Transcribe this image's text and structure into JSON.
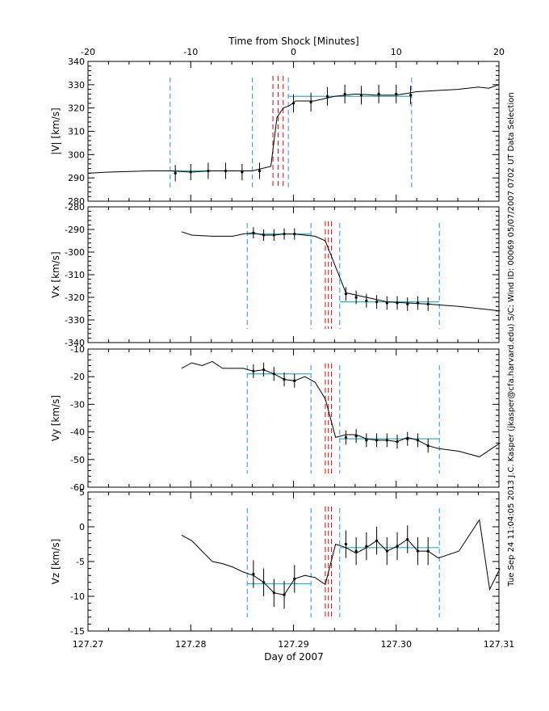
{
  "chart_data": {
    "type": "line",
    "top_axis": {
      "label": "Time from Shock [Minutes]",
      "range": [
        -20,
        20
      ],
      "ticks": [
        -20,
        -10,
        0,
        10,
        20
      ]
    },
    "x_axis": {
      "label": "Day of 2007",
      "range": [
        127.27,
        127.31
      ],
      "ticks": [
        "127.27",
        "127.28",
        "127.29",
        "127.30",
        "127.31"
      ]
    },
    "side_text": "Tue Sep 24 11:04:05 2013    J.C. Kasper (jkasper@cfa.harvard.edu)    S/C: Wind ID: 00069 05/07/2007    0702 UT Data Selection",
    "colors": {
      "data_line": "#000000",
      "window_line": "#1e90ff",
      "shock_line": "#e00000",
      "fit_line": "#22b8c8"
    },
    "panels": [
      {
        "ylabel": "|V| [km/s]",
        "ylim": [
          280,
          340
        ],
        "yticks": [
          280,
          290,
          300,
          310,
          320,
          330,
          340
        ],
        "series": [
          {
            "x": [
              -20,
              -18,
              -14,
              -12,
              -10,
              -8,
              -6,
              -4,
              -2.2,
              -1.6,
              -1.0,
              -0.4,
              0.2,
              2,
              4,
              6,
              8,
              10,
              12,
              14,
              16,
              18,
              19,
              20
            ],
            "y": [
              292,
              292.5,
              293,
              293,
              292.5,
              293,
              293,
              293,
              295,
              316,
              320,
              321,
              323,
              323,
              325,
              326,
              325.5,
              325.5,
              327,
              327.5,
              328,
              329,
              328.5,
              330
            ]
          }
        ],
        "errorbars": [
          {
            "x": [
              -11.5,
              -10.0,
              -8.3,
              -6.6,
              -5.0,
              -3.3
            ],
            "y": [
              292,
              292.5,
              293,
              293,
              292.5,
              293
            ],
            "err": [
              3.5,
              3.5,
              3.5,
              3.5,
              3.5,
              3.5
            ]
          },
          {
            "x": [
              0.0,
              1.7,
              3.3,
              5.0,
              6.6,
              8.3,
              10.0,
              11.4
            ],
            "y": [
              322,
              322.5,
              325,
              326,
              325.5,
              326,
              326,
              325.5
            ],
            "err": [
              4,
              4,
              4,
              4,
              4,
              4,
              4,
              4
            ]
          }
        ],
        "fits": [
          {
            "x": [
              -12,
              -4
            ],
            "y": 293
          },
          {
            "x": [
              -0.5,
              11.5
            ],
            "y": 325
          }
        ],
        "window_lines": [
          -12,
          -4,
          -0.5,
          11.5
        ],
        "shock_lines": [
          -2.0,
          -1.5,
          -1.0
        ]
      },
      {
        "ylabel": "Vx [km/s]",
        "ylim": [
          -340,
          -280
        ],
        "yticks": [
          -340,
          -330,
          -320,
          -310,
          -300,
          -290,
          -280
        ],
        "series": [
          {
            "x": [
              127.2791,
              127.2801,
              127.2821,
              127.2841,
              127.2851,
              127.2861,
              127.2871,
              127.2881,
              127.2891,
              127.2901,
              127.2921,
              127.2931,
              127.2951,
              127.2971,
              127.2991,
              127.3011,
              127.3031,
              127.3061,
              127.3081,
              127.3101
            ],
            "y": [
              -291,
              -292.5,
              -293,
              -293,
              -292,
              -291.5,
              -292.5,
              -292.5,
              -292,
              -292,
              -293,
              -295,
              -318,
              -320,
              -322,
              -322.5,
              -323,
              -324,
              -325,
              -326
            ]
          }
        ],
        "errorbars": [
          {
            "x": [
              127.2861,
              127.2871,
              127.2881,
              127.2891,
              127.2901
            ],
            "y": [
              -291.5,
              -292.5,
              -292.5,
              -292,
              -292
            ],
            "err": [
              2.5,
              2.5,
              2.5,
              2.5,
              2.5
            ]
          },
          {
            "x": [
              127.2951,
              127.2961,
              127.2971,
              127.2981,
              127.2991,
              127.3001,
              127.3011,
              127.3021,
              127.3031
            ],
            "y": [
              -318.5,
              -320,
              -321.5,
              -322,
              -322.5,
              -322.5,
              -323,
              -322.5,
              -323
            ],
            "err": [
              3,
              3,
              3,
              3,
              3,
              3,
              3,
              3,
              3
            ]
          }
        ],
        "fits": [
          {
            "x": [
              127.2855,
              127.2917
            ],
            "y": -292
          },
          {
            "x": [
              127.2945,
              127.3042
            ],
            "y": -322
          }
        ],
        "window_lines": [
          127.2855,
          127.2917,
          127.2945,
          127.3042
        ],
        "shock_lines": [
          127.2931,
          127.2934,
          127.2937
        ]
      },
      {
        "ylabel": "Vy [km/s]",
        "ylim": [
          -60,
          -10
        ],
        "yticks": [
          -60,
          -50,
          -40,
          -30,
          -20,
          -10
        ],
        "series": [
          {
            "x": [
              127.2791,
              127.2801,
              127.2811,
              127.2821,
              127.2831,
              127.2841,
              127.2851,
              127.2861,
              127.2871,
              127.2881,
              127.2891,
              127.2901,
              127.2911,
              127.2921,
              127.2931,
              127.2941,
              127.2951,
              127.2961,
              127.2971,
              127.2981,
              127.2991,
              127.3001,
              127.3011,
              127.3021,
              127.3031,
              127.3041,
              127.3061,
              127.3081,
              127.3101
            ],
            "y": [
              -17,
              -15,
              -16,
              -14.5,
              -17,
              -17,
              -17,
              -18,
              -17.5,
              -19,
              -21,
              -21.5,
              -20,
              -22,
              -28,
              -42,
              -41,
              -41,
              -42.5,
              -43,
              -43,
              -43.5,
              -42,
              -43,
              -45,
              -46,
              -47,
              -49,
              -44
            ]
          }
        ],
        "errorbars": [
          {
            "x": [
              127.2861,
              127.2871,
              127.2881,
              127.2891,
              127.2901
            ],
            "y": [
              -18,
              -17.5,
              -19,
              -21,
              -21.5
            ],
            "err": [
              2.5,
              2.5,
              2.5,
              2.5,
              2.5
            ]
          },
          {
            "x": [
              127.2951,
              127.2961,
              127.2971,
              127.2981,
              127.2991,
              127.3001,
              127.3011,
              127.3021,
              127.3031
            ],
            "y": [
              -42,
              -41.5,
              -43,
              -43,
              -43,
              -43.5,
              -42.5,
              -43,
              -45
            ],
            "err": [
              2.5,
              2.5,
              2.5,
              2.5,
              2.5,
              2.5,
              2.5,
              2.5,
              2.5
            ]
          }
        ],
        "fits": [
          {
            "x": [
              127.2855,
              127.2917
            ],
            "y": -19
          },
          {
            "x": [
              127.2945,
              127.3042
            ],
            "y": -42.5
          }
        ],
        "window_lines": [
          127.2855,
          127.2917,
          127.2945,
          127.3042
        ],
        "shock_lines": [
          127.2931,
          127.2934,
          127.2937
        ]
      },
      {
        "ylabel": "Vz [km/s]",
        "ylim": [
          -15,
          5
        ],
        "yticks": [
          -15,
          -10,
          -5,
          0,
          5
        ],
        "series": [
          {
            "x": [
              127.2791,
              127.2801,
              127.2811,
              127.2821,
              127.2831,
              127.2841,
              127.2851,
              127.2861,
              127.2871,
              127.2881,
              127.2891,
              127.2901,
              127.2911,
              127.2921,
              127.2931,
              127.2941,
              127.2951,
              127.2961,
              127.2971,
              127.2981,
              127.2991,
              127.3001,
              127.3011,
              127.3021,
              127.3031,
              127.3041,
              127.3061,
              127.3081,
              127.3091,
              127.3101
            ],
            "y": [
              -1.2,
              -2,
              -3.5,
              -5,
              -5.3,
              -5.8,
              -6.5,
              -7,
              -8,
              -9.5,
              -9.8,
              -7.5,
              -7,
              -7.3,
              -8.3,
              -2.5,
              -3,
              -3.8,
              -3,
              -2,
              -3.5,
              -2.8,
              -1.8,
              -3.5,
              -3.5,
              -4.5,
              -3.5,
              1,
              -9,
              -6
            ]
          }
        ],
        "errorbars": [
          {
            "x": [
              127.2861,
              127.2871,
              127.2881,
              127.2891,
              127.2901
            ],
            "y": [
              -6.8,
              -8,
              -9.5,
              -9.8,
              -7.5
            ],
            "err": [
              2,
              2,
              2,
              2,
              2
            ]
          },
          {
            "x": [
              127.2951,
              127.2961,
              127.2971,
              127.2981,
              127.2991,
              127.3001,
              127.3011,
              127.3021,
              127.3031
            ],
            "y": [
              -2.5,
              -3.5,
              -2.8,
              -2,
              -3.5,
              -2.8,
              -1.8,
              -3.5,
              -3.5
            ],
            "err": [
              2,
              2,
              2,
              2,
              2,
              2,
              2,
              2,
              2
            ]
          }
        ],
        "fits": [
          {
            "x": [
              127.2855,
              127.2917
            ],
            "y": -8.2
          },
          {
            "x": [
              127.2945,
              127.3042
            ],
            "y": -3
          }
        ],
        "window_lines": [
          127.2855,
          127.2917,
          127.2945,
          127.3042
        ],
        "shock_lines": [
          127.2931,
          127.2934,
          127.2937
        ]
      }
    ]
  }
}
